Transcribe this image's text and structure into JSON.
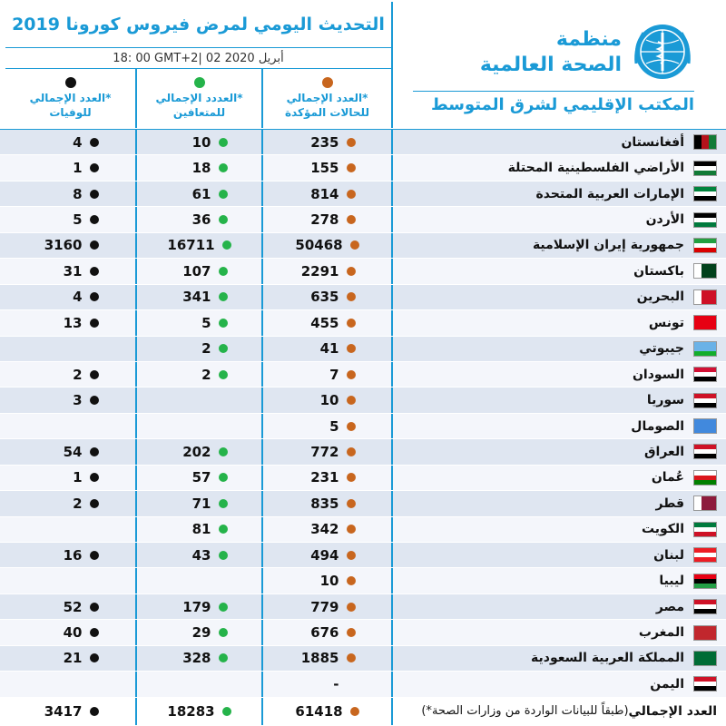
{
  "header": {
    "title": "التحديث اليومي لمرض فيروس كورونا 2019",
    "date": "18: 00   GMT+2|  02 أبريل 2020",
    "org_name_line1": "منظمة",
    "org_name_line2": "الصحة العالمية",
    "org_region": "المكتب الإقليمي لشرق المتوسط"
  },
  "columns": {
    "confirmed": {
      "line1": "العدد الإجمالي*",
      "line2": "للحالات المؤكدة",
      "color": "#c8661e"
    },
    "recovered": {
      "line1": "العددد الإجمالي*",
      "line2": "للمتعافين",
      "color": "#25b34a"
    },
    "deaths": {
      "line1": "العدد الإجمالي*",
      "line2": "للوفيات",
      "color": "#111111"
    }
  },
  "rows": [
    {
      "country": "أفغانستان",
      "confirmed": "235",
      "recovered": "10",
      "deaths": "4",
      "flag": [
        "#000000",
        "#b5121b",
        "#117a36"
      ],
      "flag_dir": "row"
    },
    {
      "country": "الأراضي الفلسطينية المحتلة",
      "confirmed": "155",
      "recovered": "18",
      "deaths": "1",
      "flag": [
        "#000000",
        "#ffffff",
        "#117a36"
      ],
      "flag_dir": "col"
    },
    {
      "country": "الإمارات العربية المتحدة",
      "confirmed": "814",
      "recovered": "61",
      "deaths": "8",
      "flag": [
        "#00843d",
        "#ffffff",
        "#000000"
      ],
      "flag_dir": "col"
    },
    {
      "country": "الأردن",
      "confirmed": "278",
      "recovered": "36",
      "deaths": "5",
      "flag": [
        "#000000",
        "#ffffff",
        "#007a3d"
      ],
      "flag_dir": "col"
    },
    {
      "country": "جمهورية إيران الإسلامية",
      "confirmed": "50468",
      "recovered": "16711",
      "deaths": "3160",
      "flag": [
        "#239f40",
        "#ffffff",
        "#da0000"
      ],
      "flag_dir": "col"
    },
    {
      "country": "باكستان",
      "confirmed": "2291",
      "recovered": "107",
      "deaths": "31",
      "flag": [
        "#ffffff",
        "#01411c",
        "#01411c"
      ],
      "flag_dir": "row"
    },
    {
      "country": "البحرين",
      "confirmed": "635",
      "recovered": "341",
      "deaths": "4",
      "flag": [
        "#ffffff",
        "#ce1126",
        "#ce1126"
      ],
      "flag_dir": "row"
    },
    {
      "country": "تونس",
      "confirmed": "455",
      "recovered": "5",
      "deaths": "13",
      "flag": [
        "#e70013",
        "#e70013",
        "#e70013"
      ],
      "flag_dir": "col"
    },
    {
      "country": "جيبوتي",
      "confirmed": "41",
      "recovered": "2",
      "deaths": "",
      "flag": [
        "#6ab2e7",
        "#6ab2e7",
        "#12ad2b"
      ],
      "flag_dir": "col"
    },
    {
      "country": "السودان",
      "confirmed": "7",
      "recovered": "2",
      "deaths": "2",
      "flag": [
        "#d21034",
        "#ffffff",
        "#000000"
      ],
      "flag_dir": "col"
    },
    {
      "country": "سوريا",
      "confirmed": "10",
      "recovered": "",
      "deaths": "3",
      "flag": [
        "#ce1126",
        "#ffffff",
        "#000000"
      ],
      "flag_dir": "col"
    },
    {
      "country": "الصومال",
      "confirmed": "5",
      "recovered": "",
      "deaths": "",
      "flag": [
        "#4189dd",
        "#4189dd",
        "#4189dd"
      ],
      "flag_dir": "col"
    },
    {
      "country": "العراق",
      "confirmed": "772",
      "recovered": "202",
      "deaths": "54",
      "flag": [
        "#ce1126",
        "#ffffff",
        "#000000"
      ],
      "flag_dir": "col"
    },
    {
      "country": "عُمان",
      "confirmed": "231",
      "recovered": "57",
      "deaths": "1",
      "flag": [
        "#ffffff",
        "#db161b",
        "#008000"
      ],
      "flag_dir": "col"
    },
    {
      "country": "قطر",
      "confirmed": "835",
      "recovered": "71",
      "deaths": "2",
      "flag": [
        "#ffffff",
        "#8d1b3d",
        "#8d1b3d"
      ],
      "flag_dir": "row"
    },
    {
      "country": "الكويت",
      "confirmed": "342",
      "recovered": "81",
      "deaths": "",
      "flag": [
        "#007a3d",
        "#ffffff",
        "#ce1126"
      ],
      "flag_dir": "col"
    },
    {
      "country": "لبنان",
      "confirmed": "494",
      "recovered": "43",
      "deaths": "16",
      "flag": [
        "#ed1c24",
        "#ffffff",
        "#ed1c24"
      ],
      "flag_dir": "col"
    },
    {
      "country": "ليبيا",
      "confirmed": "10",
      "recovered": "",
      "deaths": "",
      "flag": [
        "#e70013",
        "#000000",
        "#239e46"
      ],
      "flag_dir": "col"
    },
    {
      "country": "مصر",
      "confirmed": "779",
      "recovered": "179",
      "deaths": "52",
      "flag": [
        "#ce1126",
        "#ffffff",
        "#000000"
      ],
      "flag_dir": "col"
    },
    {
      "country": "المغرب",
      "confirmed": "676",
      "recovered": "29",
      "deaths": "40",
      "flag": [
        "#c1272d",
        "#c1272d",
        "#c1272d"
      ],
      "flag_dir": "col"
    },
    {
      "country": "المملكة العربية السعودية",
      "confirmed": "1885",
      "recovered": "328",
      "deaths": "21",
      "flag": [
        "#006c35",
        "#006c35",
        "#006c35"
      ],
      "flag_dir": "col"
    },
    {
      "country": "اليمن",
      "confirmed": "-",
      "recovered": "",
      "deaths": "",
      "flag": [
        "#ce1126",
        "#ffffff",
        "#000000"
      ],
      "flag_dir": "col"
    }
  ],
  "total": {
    "label_bold": "العدد الإجمالي",
    "label_note": "(*طبقاً للبيانات الواردة من وزارات الصحة)",
    "confirmed": "61418",
    "recovered": "18283",
    "deaths": "3417"
  }
}
